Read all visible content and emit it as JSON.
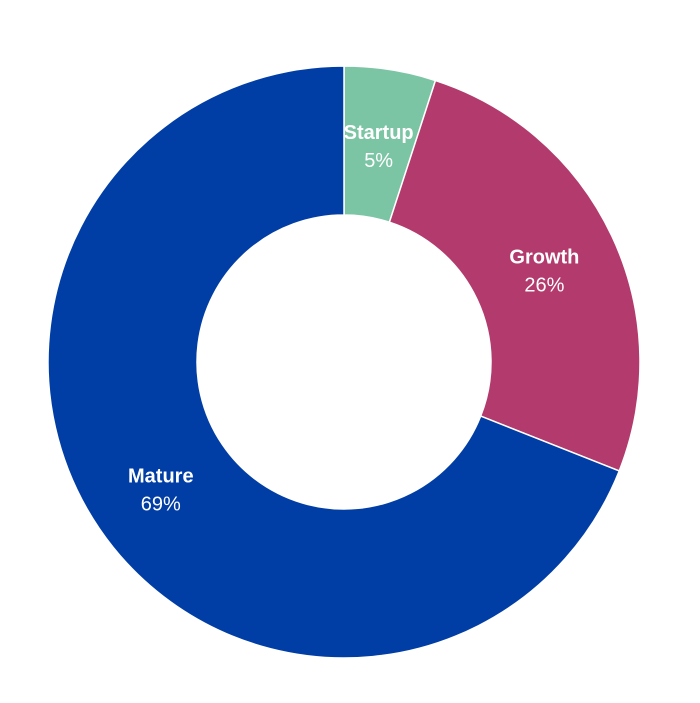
{
  "chart_data": {
    "type": "pie",
    "donut": true,
    "categories": [
      "Startup",
      "Growth",
      "Mature"
    ],
    "values": [
      5,
      26,
      69
    ],
    "value_labels": [
      "5%",
      "26%",
      "69%"
    ],
    "colors": [
      "#7CC5A4",
      "#B33A6C",
      "#003DA5"
    ],
    "start_angle": "12 o'clock",
    "direction": "clockwise",
    "legend": "none",
    "title": ""
  }
}
